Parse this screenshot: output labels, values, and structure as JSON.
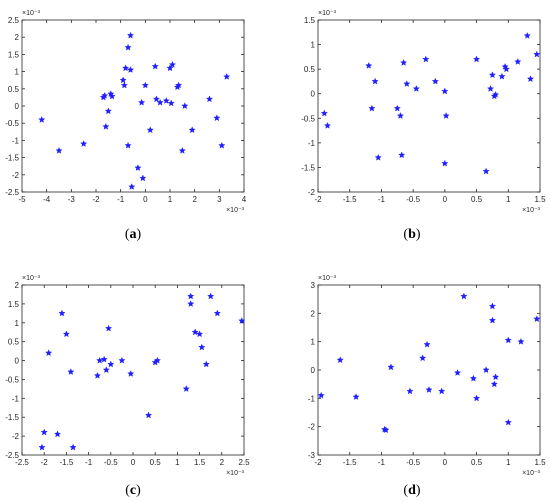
{
  "colors": {
    "marker": "#1f1fff",
    "axis": "#262626",
    "background": "#ffffff"
  },
  "chart_data": [
    {
      "type": "scatter",
      "panel_label": "a",
      "axis_exponent_x": "×10⁻³",
      "axis_exponent_y": "×10⁻³",
      "xlim": [
        -5,
        4
      ],
      "ylim": [
        -2.5,
        2.5
      ],
      "xticks": [
        -5,
        -4,
        -3,
        -2,
        -1,
        0,
        1,
        2,
        3,
        4
      ],
      "yticks": [
        -2.5,
        -2,
        -1.5,
        -1,
        -0.5,
        0,
        0.5,
        1,
        1.5,
        2,
        2.5
      ],
      "xtick_labels": [
        "-5",
        "-4",
        "-3",
        "-2",
        "-1",
        "0",
        "1",
        "2",
        "3",
        "4"
      ],
      "ytick_labels": [
        "-2.5",
        "-2",
        "-1.5",
        "-1",
        "-0.5",
        "0",
        "0.5",
        "1",
        "1.5",
        "2",
        "2.5"
      ],
      "grid": false,
      "points": [
        {
          "x": -4.2,
          "y": -0.4
        },
        {
          "x": -3.5,
          "y": -1.3
        },
        {
          "x": -2.5,
          "y": -1.1
        },
        {
          "x": -1.7,
          "y": 0.25
        },
        {
          "x": -1.65,
          "y": 0.3
        },
        {
          "x": -1.6,
          "y": -0.6
        },
        {
          "x": -1.5,
          "y": -0.15
        },
        {
          "x": -1.4,
          "y": 0.35
        },
        {
          "x": -1.35,
          "y": 0.28
        },
        {
          "x": -0.9,
          "y": 0.75
        },
        {
          "x": -0.85,
          "y": 0.6
        },
        {
          "x": -0.8,
          "y": 1.1
        },
        {
          "x": -0.7,
          "y": 1.7
        },
        {
          "x": -0.6,
          "y": 2.05
        },
        {
          "x": -0.6,
          "y": 1.05
        },
        {
          "x": -0.7,
          "y": -1.15
        },
        {
          "x": -0.55,
          "y": -2.35
        },
        {
          "x": -0.3,
          "y": -1.8
        },
        {
          "x": -0.1,
          "y": -2.1
        },
        {
          "x": -0.15,
          "y": 0.1
        },
        {
          "x": 0.0,
          "y": 0.6
        },
        {
          "x": 0.2,
          "y": -0.7
        },
        {
          "x": 0.4,
          "y": 1.15
        },
        {
          "x": 0.45,
          "y": 0.2
        },
        {
          "x": 0.6,
          "y": 0.1
        },
        {
          "x": 0.85,
          "y": 0.15
        },
        {
          "x": 1.0,
          "y": 1.1
        },
        {
          "x": 1.1,
          "y": 1.2
        },
        {
          "x": 1.05,
          "y": 0.08
        },
        {
          "x": 1.3,
          "y": 0.55
        },
        {
          "x": 1.35,
          "y": 0.6
        },
        {
          "x": 1.5,
          "y": -1.3
        },
        {
          "x": 1.6,
          "y": 0.0
        },
        {
          "x": 1.9,
          "y": -0.7
        },
        {
          "x": 2.6,
          "y": 0.2
        },
        {
          "x": 2.9,
          "y": -0.35
        },
        {
          "x": 3.1,
          "y": -1.15
        },
        {
          "x": 3.3,
          "y": 0.85
        }
      ]
    },
    {
      "type": "scatter",
      "panel_label": "b",
      "axis_exponent_x": "×10⁻³",
      "axis_exponent_y": "×10⁻³",
      "xlim": [
        -2,
        1.5
      ],
      "ylim": [
        -2,
        1.5
      ],
      "xticks": [
        -2,
        -1.5,
        -1,
        -0.5,
        0,
        0.5,
        1,
        1.5
      ],
      "yticks": [
        -2,
        -1.5,
        -1,
        -0.5,
        0,
        0.5,
        1,
        1.5
      ],
      "xtick_labels": [
        "-2",
        "-1.5",
        "-1",
        "-0.5",
        "0",
        "0.5",
        "1",
        "1.5"
      ],
      "ytick_labels": [
        "-2",
        "-1.5",
        "-1",
        "-0.5",
        "0",
        "0.5",
        "1",
        "1.5"
      ],
      "grid": false,
      "points": [
        {
          "x": -1.9,
          "y": -0.4
        },
        {
          "x": -1.85,
          "y": -0.65
        },
        {
          "x": -1.2,
          "y": 0.57
        },
        {
          "x": -1.15,
          "y": -0.3
        },
        {
          "x": -1.1,
          "y": 0.25
        },
        {
          "x": -1.05,
          "y": -1.3
        },
        {
          "x": -0.75,
          "y": -0.3
        },
        {
          "x": -0.7,
          "y": -0.45
        },
        {
          "x": -0.68,
          "y": -1.25
        },
        {
          "x": -0.65,
          "y": 0.63
        },
        {
          "x": -0.6,
          "y": 0.2
        },
        {
          "x": -0.45,
          "y": 0.1
        },
        {
          "x": -0.3,
          "y": 0.7
        },
        {
          "x": -0.15,
          "y": 0.25
        },
        {
          "x": 0.0,
          "y": 0.05
        },
        {
          "x": 0.02,
          "y": -0.45
        },
        {
          "x": 0.0,
          "y": -1.42
        },
        {
          "x": 0.5,
          "y": 0.7
        },
        {
          "x": 0.65,
          "y": -1.58
        },
        {
          "x": 0.72,
          "y": 0.1
        },
        {
          "x": 0.75,
          "y": 0.38
        },
        {
          "x": 0.78,
          "y": -0.05
        },
        {
          "x": 0.8,
          "y": -0.02
        },
        {
          "x": 0.9,
          "y": 0.35
        },
        {
          "x": 0.95,
          "y": 0.55
        },
        {
          "x": 0.97,
          "y": 0.5
        },
        {
          "x": 1.15,
          "y": 0.65
        },
        {
          "x": 1.3,
          "y": 1.18
        },
        {
          "x": 1.35,
          "y": 0.3
        },
        {
          "x": 1.45,
          "y": 0.8
        }
      ]
    },
    {
      "type": "scatter",
      "panel_label": "c",
      "axis_exponent_x": "×10⁻³",
      "axis_exponent_y": "×10⁻³",
      "xlim": [
        -2.5,
        2.5
      ],
      "ylim": [
        -2.5,
        2
      ],
      "xticks": [
        -2.5,
        -2,
        -1.5,
        -1,
        -0.5,
        0,
        0.5,
        1,
        1.5,
        2,
        2.5
      ],
      "yticks": [
        -2.5,
        -2,
        -1.5,
        -1,
        -0.5,
        0,
        0.5,
        1,
        1.5,
        2
      ],
      "xtick_labels": [
        "-2.5",
        "-2",
        "-1.5",
        "-1",
        "-0.5",
        "0",
        "0.5",
        "1",
        "1.5",
        "2",
        "2.5"
      ],
      "ytick_labels": [
        "-2.5",
        "-2",
        "-1.5",
        "-1",
        "-0.5",
        "0",
        "0.5",
        "1",
        "1.5",
        "2"
      ],
      "grid": false,
      "points": [
        {
          "x": -2.05,
          "y": -2.3
        },
        {
          "x": -2.0,
          "y": -1.9
        },
        {
          "x": -1.9,
          "y": 0.2
        },
        {
          "x": -1.7,
          "y": -1.95
        },
        {
          "x": -1.6,
          "y": 1.25
        },
        {
          "x": -1.5,
          "y": 0.7
        },
        {
          "x": -1.4,
          "y": -0.3
        },
        {
          "x": -1.35,
          "y": -2.3
        },
        {
          "x": -0.8,
          "y": -0.4
        },
        {
          "x": -0.75,
          "y": 0.0
        },
        {
          "x": -0.65,
          "y": 0.03
        },
        {
          "x": -0.6,
          "y": -0.25
        },
        {
          "x": -0.55,
          "y": 0.85
        },
        {
          "x": -0.5,
          "y": -0.1
        },
        {
          "x": -0.25,
          "y": 0.0
        },
        {
          "x": -0.05,
          "y": -0.35
        },
        {
          "x": 0.35,
          "y": -1.45
        },
        {
          "x": 0.5,
          "y": -0.05
        },
        {
          "x": 0.55,
          "y": 0.0
        },
        {
          "x": 1.2,
          "y": -0.75
        },
        {
          "x": 1.3,
          "y": 1.7
        },
        {
          "x": 1.3,
          "y": 1.5
        },
        {
          "x": 1.4,
          "y": 0.75
        },
        {
          "x": 1.5,
          "y": 0.7
        },
        {
          "x": 1.55,
          "y": 0.35
        },
        {
          "x": 1.65,
          "y": -0.1
        },
        {
          "x": 1.75,
          "y": 1.7
        },
        {
          "x": 1.9,
          "y": 1.25
        },
        {
          "x": 2.45,
          "y": 1.05
        }
      ]
    },
    {
      "type": "scatter",
      "panel_label": "d",
      "axis_exponent_x": "×10⁻³",
      "axis_exponent_y": "×10⁻³",
      "xlim": [
        -2,
        1.5
      ],
      "ylim": [
        -3,
        3
      ],
      "xticks": [
        -2,
        -1.5,
        -1,
        -0.5,
        0,
        0.5,
        1,
        1.5
      ],
      "yticks": [
        -3,
        -2,
        -1,
        0,
        1,
        2,
        3
      ],
      "xtick_labels": [
        "-2",
        "-1.5",
        "-1",
        "-0.5",
        "0",
        "0.5",
        "1",
        "1.5"
      ],
      "ytick_labels": [
        "-3",
        "-2",
        "-1",
        "0",
        "1",
        "2",
        "3"
      ],
      "grid": false,
      "points": [
        {
          "x": -1.95,
          "y": -0.9
        },
        {
          "x": -1.65,
          "y": 0.35
        },
        {
          "x": -1.4,
          "y": -0.95
        },
        {
          "x": -0.95,
          "y": -2.1
        },
        {
          "x": -0.93,
          "y": -2.12
        },
        {
          "x": -0.85,
          "y": 0.1
        },
        {
          "x": -0.55,
          "y": -0.75
        },
        {
          "x": -0.35,
          "y": 0.42
        },
        {
          "x": -0.28,
          "y": 0.9
        },
        {
          "x": -0.25,
          "y": -0.7
        },
        {
          "x": -0.05,
          "y": -0.75
        },
        {
          "x": 0.2,
          "y": -0.1
        },
        {
          "x": 0.3,
          "y": 2.6
        },
        {
          "x": 0.45,
          "y": -0.3
        },
        {
          "x": 0.5,
          "y": -1.0
        },
        {
          "x": 0.65,
          "y": 0.0
        },
        {
          "x": 0.75,
          "y": 1.75
        },
        {
          "x": 0.75,
          "y": 2.25
        },
        {
          "x": 0.78,
          "y": -0.5
        },
        {
          "x": 0.8,
          "y": -0.25
        },
        {
          "x": 1.0,
          "y": -1.85
        },
        {
          "x": 1.0,
          "y": 1.05
        },
        {
          "x": 1.2,
          "y": 1.0
        },
        {
          "x": 1.45,
          "y": 1.8
        }
      ]
    }
  ]
}
